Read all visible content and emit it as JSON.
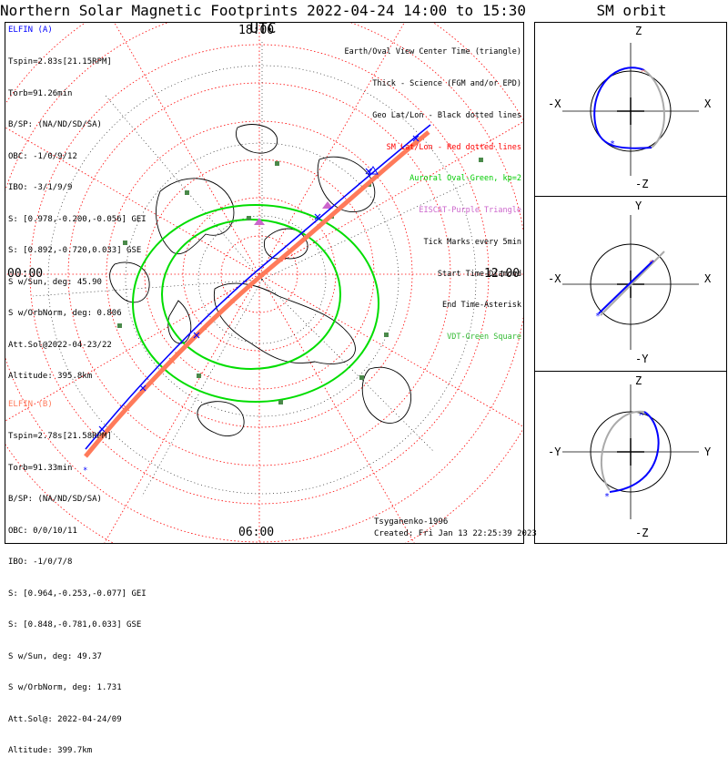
{
  "header": {
    "title": "Northern Solar Magnetic Footprints 2022-04-24 14:00 to 15:30 UTC",
    "orbit_title": "SM orbit"
  },
  "time_labels": {
    "top": "18:00",
    "left": "00:00",
    "right": "12:00",
    "bottom": "06:00"
  },
  "colors": {
    "elfin_a": "#0000ff",
    "elfin_b": "#ff7a5a",
    "oval": "#00dd00",
    "grid": "#ff0000",
    "land": "#000000"
  },
  "elfin_a": {
    "name": "ELFIN (A)",
    "lines": [
      "Tspin=2.83s[21.15RPM]",
      "Torb=91.26min",
      "B/SP: (NA/ND/SD/SA)",
      "OBC: -1/0/9/12",
      "IBO: -3/1/9/9",
      "S: [0.978,-0.200,-0.056] GEI",
      "S: [0.892,-0.720,0.033] GSE",
      "S w/Sun, deg: 45.90",
      "S w/OrbNorm, deg: 0.806",
      "Att.Sol@2022-04-23/22",
      "Altitude: 395.8km"
    ]
  },
  "elfin_b": {
    "name": "ELFIN (B)",
    "lines": [
      "Tspin=2.78s[21.58RPM]",
      "Torb=91.33min",
      "B/SP: (NA/ND/SD/SA)",
      "OBC: 0/0/10/11",
      "IBO: -1/0/7/8",
      "S: [0.964,-0.253,-0.077] GEI",
      "S: [0.848,-0.781,0.033] GSE",
      "S w/Sun, deg: 49.37",
      "S w/OrbNorm, deg: 1.731",
      "Att.Sol@: 2022-04-24/09",
      "Altitude: 399.7km"
    ]
  },
  "legend": {
    "items": [
      {
        "text": "Earth/Oval View Center Time (triangle)",
        "color": "#000000"
      },
      {
        "text": "Thick - Science (FGM and/or EPD)",
        "color": "#000000"
      },
      {
        "text": "Geo Lat/Lon - Black dotted lines",
        "color": "#000000"
      },
      {
        "text": "SM Lat/Lon - Red dotted lines",
        "color": "#ff0000"
      },
      {
        "text": "Auroral Oval-Green, kp=2",
        "color": "#00cc00"
      },
      {
        "text": "EISCAT-Purple Triangle",
        "color": "#cc66cc"
      },
      {
        "text": "Tick Marks every 5min",
        "color": "#000000"
      },
      {
        "text": "Start Time-Diamond",
        "color": "#000000"
      },
      {
        "text": "End Time-Asterisk",
        "color": "#000000"
      },
      {
        "text": "VDT-Green Square",
        "color": "#33bb33"
      }
    ]
  },
  "credits": {
    "model": "Tsyganenko-1996",
    "created": "Created: Fri Jan 13 22:25:39 2023"
  },
  "orbit_panels": [
    {
      "top": "Z",
      "bottom": "-Z",
      "left": "-X",
      "right": "X"
    },
    {
      "top": "Y",
      "bottom": "-Y",
      "left": "-X",
      "right": "X"
    },
    {
      "top": "Z",
      "bottom": "-Z",
      "left": "-Y",
      "right": "Y"
    }
  ]
}
